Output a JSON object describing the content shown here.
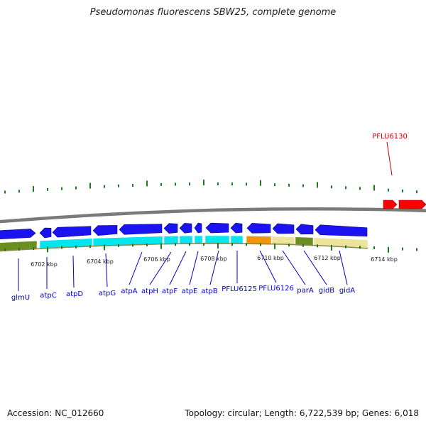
{
  "title": "Pseudomonas fluorescens SBW25, complete genome",
  "footer": {
    "accession": "Accession: NC_012660",
    "summary": "Topology: circular; Length: 6,722,539 bp; Genes: 6,018"
  },
  "colors": {
    "forward_cds": "#1a12f0",
    "reverse_cds": "#00e5ee",
    "highlight_gene": "#ff0000",
    "orange_feature": "#f5930a",
    "khaki_feature": "#ede39a",
    "olive_feature": "#6b8e23",
    "backbone": "#7a7a7a",
    "ticks": "#1e7a1e",
    "label_blue": "#0000cc",
    "label_red": "#cc0000"
  },
  "scale_labels": [
    "6702 kbp",
    "6704 kbp",
    "6706 kbp",
    "6708 kbp",
    "6710 kbp",
    "6712 kbp",
    "6714 kbp"
  ],
  "gene_labels": [
    "glmU",
    "atpC",
    "atpD",
    "atpG",
    "atpA",
    "atpH",
    "atpF",
    "atpE",
    "atpB",
    "PFLU6125",
    "PFLU6126",
    "parA",
    "gidB",
    "gidA"
  ],
  "highlight_label": "PFLU6130"
}
